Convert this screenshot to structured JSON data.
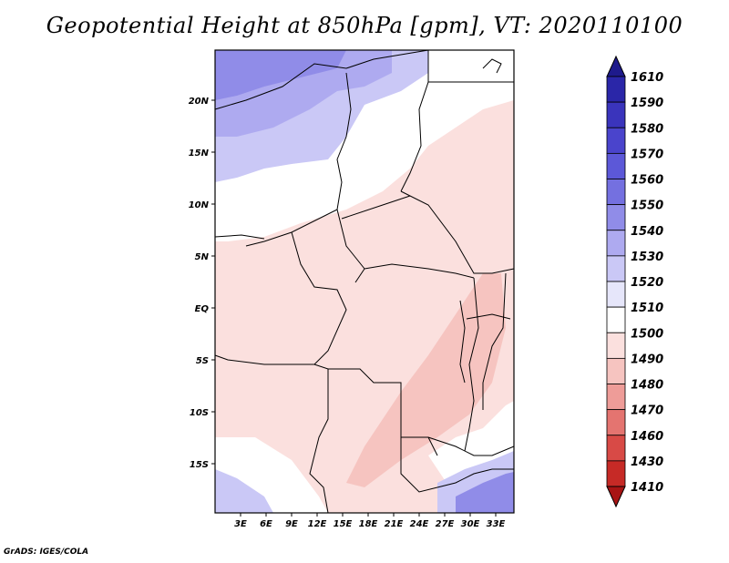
{
  "title": "Geopotential Height at 850hPa [gpm], VT: 2020110100",
  "footer": "GrADS: IGES/COLA",
  "map": {
    "lat_labels": [
      "20N",
      "15N",
      "10N",
      "5N",
      "EQ",
      "5S",
      "10S",
      "15S"
    ],
    "lon_labels": [
      "3E",
      "6E",
      "9E",
      "12E",
      "15E",
      "18E",
      "21E",
      "24E",
      "27E",
      "30E",
      "33E"
    ]
  },
  "colorbar": {
    "labels": [
      "1610",
      "1590",
      "1580",
      "1570",
      "1560",
      "1550",
      "1540",
      "1530",
      "1520",
      "1510",
      "1500",
      "1490",
      "1480",
      "1470",
      "1460",
      "1430",
      "1410"
    ],
    "colors": [
      "#1e1a8c",
      "#2a26a8",
      "#3a34bc",
      "#4a44cc",
      "#5c58d8",
      "#7470e0",
      "#908ce8",
      "#aeaaf0",
      "#cac8f6",
      "#e6e6fa",
      "#ffffff",
      "#fbe0de",
      "#f6c4c0",
      "#ee9c98",
      "#e47470",
      "#d84a46",
      "#c62a26",
      "#a81414"
    ]
  },
  "colors": {
    "warm": "#fbe0de",
    "cool": "#cac8f6",
    "neutral": "#ffffff"
  }
}
